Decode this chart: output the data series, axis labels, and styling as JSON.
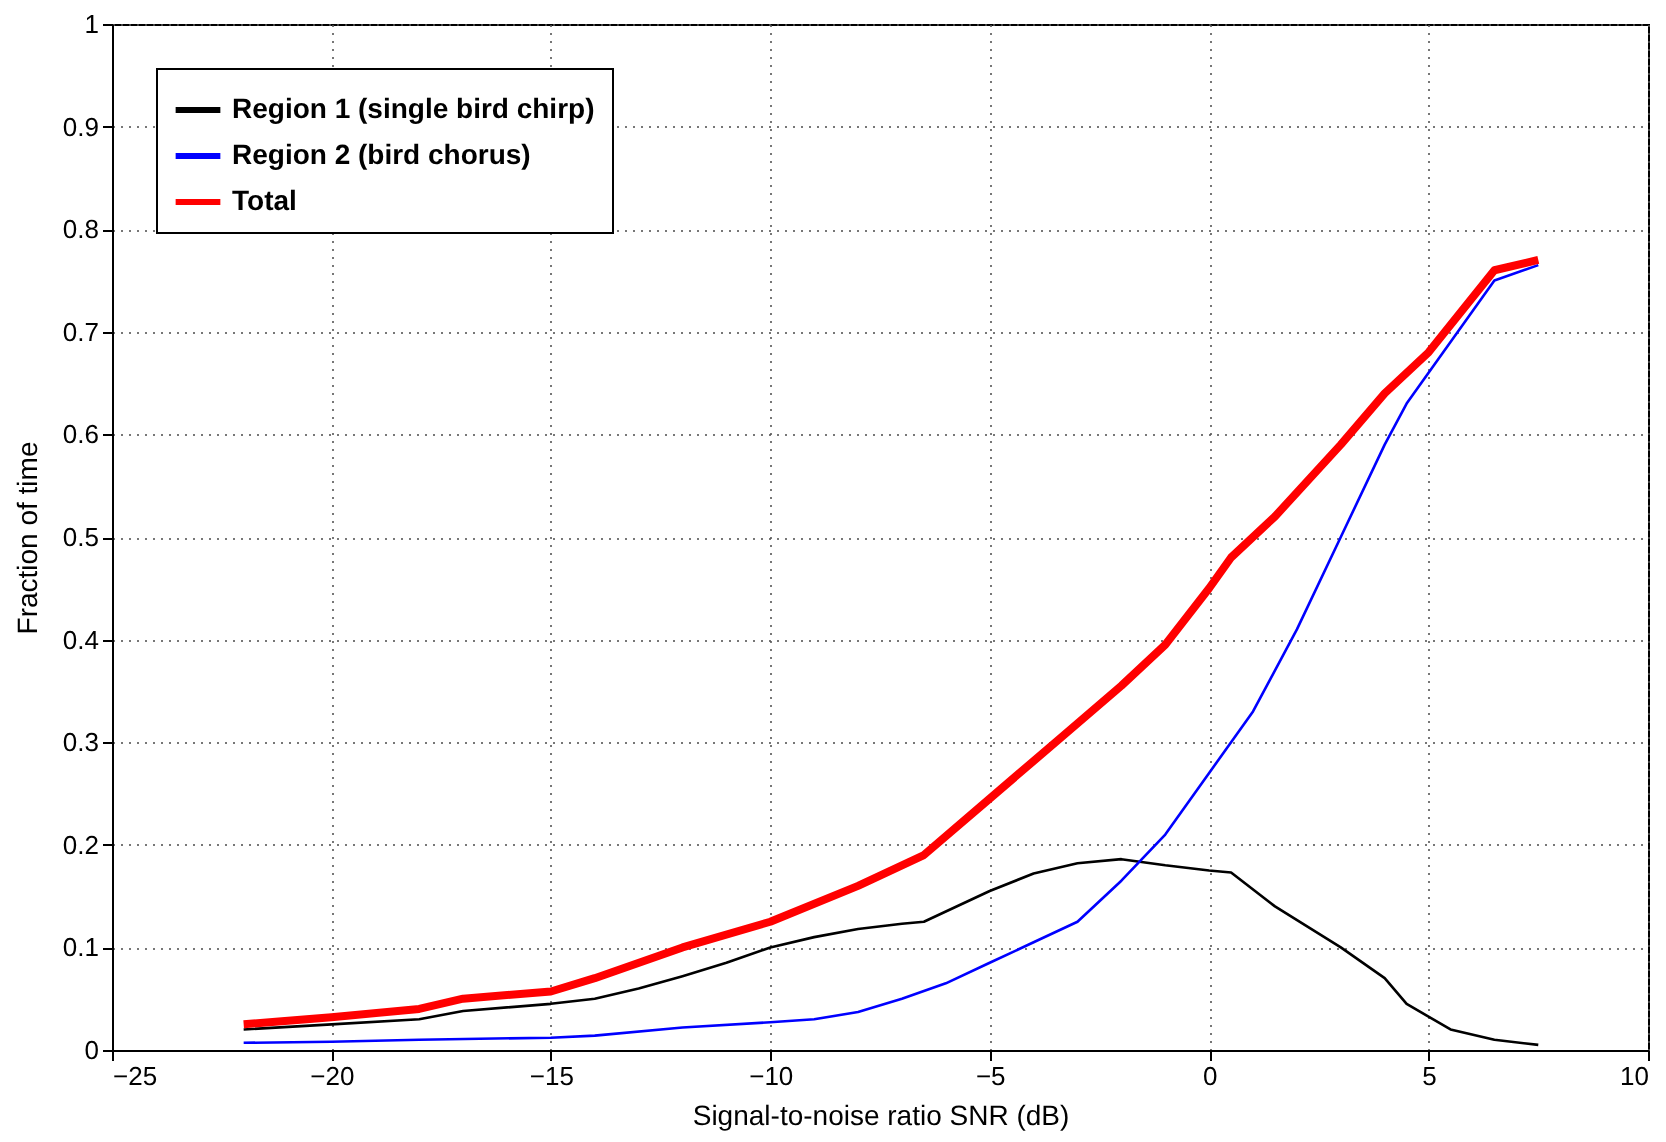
{
  "chart_data": {
    "type": "line",
    "xlabel": "Signal-to-noise ratio SNR (dB)",
    "ylabel": "Fraction of time",
    "xlim": [
      -25,
      10
    ],
    "xticks": [
      -25,
      -20,
      -15,
      -10,
      -5,
      0,
      5,
      10
    ],
    "ylim": [
      0,
      1
    ],
    "yticks": [
      0,
      0.1,
      0.2,
      0.3,
      0.4,
      0.5,
      0.6,
      0.7,
      0.8,
      0.9,
      1
    ],
    "grid": true,
    "legend": "top left",
    "line_style": "solid",
    "marker": "none",
    "series": [
      {
        "name": "Region 1 (single bird chirp)",
        "color": "#000000",
        "x": [
          -22,
          -20,
          -18,
          -17,
          -15,
          -14,
          -13,
          -12,
          -11,
          -10,
          -9,
          -8,
          -7,
          -6.5,
          -5,
          -4,
          -3,
          -2,
          -1,
          0,
          0.5,
          1.5,
          3,
          4,
          4.5,
          5.5,
          6.5,
          7.5
        ],
        "values": [
          0.02,
          0.025,
          0.03,
          0.038,
          0.045,
          0.05,
          0.06,
          0.072,
          0.085,
          0.1,
          0.11,
          0.118,
          0.123,
          0.125,
          0.155,
          0.172,
          0.182,
          0.186,
          0.18,
          0.175,
          0.173,
          0.14,
          0.1,
          0.07,
          0.045,
          0.02,
          0.01,
          0.005
        ]
      },
      {
        "name": "Region 2 (bird chorus)",
        "color": "#0000ff",
        "x": [
          -22,
          -20,
          -18,
          -15,
          -14,
          -12,
          -10,
          -9,
          -8,
          -7,
          -6,
          -5,
          -4,
          -3,
          -2,
          -1,
          0,
          1,
          2,
          3,
          4,
          4.5,
          5.5,
          6.5,
          7.5
        ],
        "values": [
          0.007,
          0.008,
          0.01,
          0.012,
          0.014,
          0.022,
          0.027,
          0.03,
          0.037,
          0.05,
          0.065,
          0.085,
          0.105,
          0.125,
          0.165,
          0.21,
          0.27,
          0.33,
          0.41,
          0.5,
          0.59,
          0.63,
          0.69,
          0.75,
          0.765
        ]
      },
      {
        "name": "Total",
        "color": "#ff0000",
        "x": [
          -22,
          -20,
          -18,
          -17,
          -15,
          -14,
          -12,
          -10,
          -8,
          -6.5,
          -5,
          -3.5,
          -2,
          -1,
          0,
          0.5,
          1.5,
          3,
          4,
          5,
          6.5,
          7.5
        ],
        "values": [
          0.025,
          0.032,
          0.04,
          0.05,
          0.057,
          0.07,
          0.1,
          0.125,
          0.16,
          0.19,
          0.245,
          0.3,
          0.355,
          0.395,
          0.45,
          0.48,
          0.52,
          0.59,
          0.64,
          0.68,
          0.76,
          0.77
        ]
      }
    ]
  }
}
